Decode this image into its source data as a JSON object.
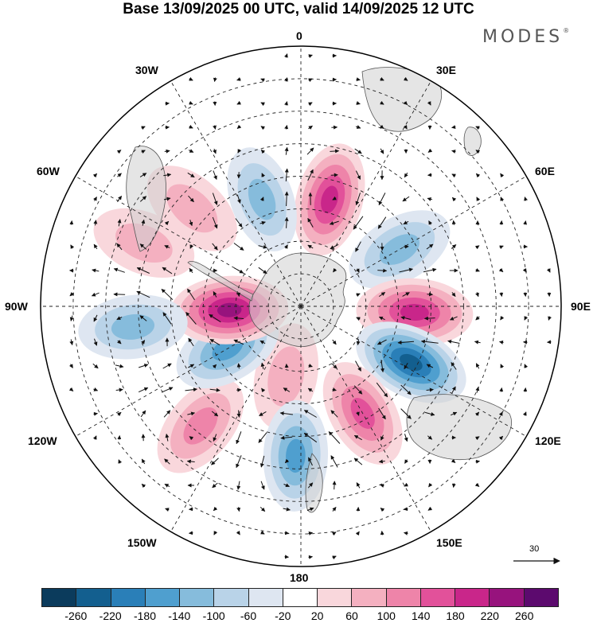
{
  "title": "Base 13/09/2025 00 UTC, valid 14/09/2025 12 UTC",
  "brand": {
    "name": "MODES",
    "mark": "®"
  },
  "longitudes": {
    "n0": "0",
    "n30e": "30E",
    "n60e": "60E",
    "n90e": "90E",
    "n120e": "120E",
    "n150e": "150E",
    "n180": "180",
    "n150w": "150W",
    "n120w": "120W",
    "n90w": "90W",
    "n60w": "60W",
    "n30w": "30W"
  },
  "reference_vector": {
    "label": "30"
  },
  "colorbar": {
    "colors": [
      "#0b3b5c",
      "#135f8f",
      "#2a7fb8",
      "#4f9fcf",
      "#86bcdc",
      "#b9d3e8",
      "#dee6f1",
      "#ffffff",
      "#f9d7dc",
      "#f4b0c0",
      "#ee84a9",
      "#e2519a",
      "#c9268a",
      "#97137d",
      "#5c0a6e"
    ],
    "tick_labels": [
      "-260",
      "-220",
      "-180",
      "-140",
      "-100",
      "-60",
      "-20",
      "20",
      "60",
      "100",
      "140",
      "180",
      "220",
      "260"
    ]
  },
  "anomalies": [
    {
      "name": "anomaly-high-atlantic",
      "lon": 15,
      "lat": -56,
      "value": 200
    },
    {
      "name": "anomaly-low-south-atlantic",
      "lon": -20,
      "lat": -55,
      "value": -120
    },
    {
      "name": "anomaly-high-argentina",
      "lon": -48,
      "lat": -45,
      "value": 110
    },
    {
      "name": "anomaly-high-pacific-east",
      "lon": -68,
      "lat": -38,
      "value": 90
    },
    {
      "name": "anomaly-low-indian-west",
      "lon": 60,
      "lat": -55,
      "value": -150
    },
    {
      "name": "anomaly-high-indian",
      "lon": 93,
      "lat": -55,
      "value": 230
    },
    {
      "name": "anomaly-low-south-australia",
      "lon": 117,
      "lat": -52,
      "value": -250
    },
    {
      "name": "anomaly-high-tasman",
      "lon": 150,
      "lat": -52,
      "value": 170
    },
    {
      "name": "anomaly-high-ross",
      "lon": -168,
      "lat": -68,
      "value": 110
    },
    {
      "name": "anomaly-low-new-zealand",
      "lon": -178,
      "lat": -44,
      "value": -160
    },
    {
      "name": "anomaly-high-pacific-south",
      "lon": -140,
      "lat": -42,
      "value": 150
    },
    {
      "name": "anomaly-low-pacific",
      "lon": -120,
      "lat": -64,
      "value": -170
    },
    {
      "name": "anomaly-high-amundsen",
      "lon": -93,
      "lat": -68,
      "value": 240
    },
    {
      "name": "anomaly-low-east-pacific",
      "lon": -97,
      "lat": -38,
      "value": -140
    }
  ]
}
